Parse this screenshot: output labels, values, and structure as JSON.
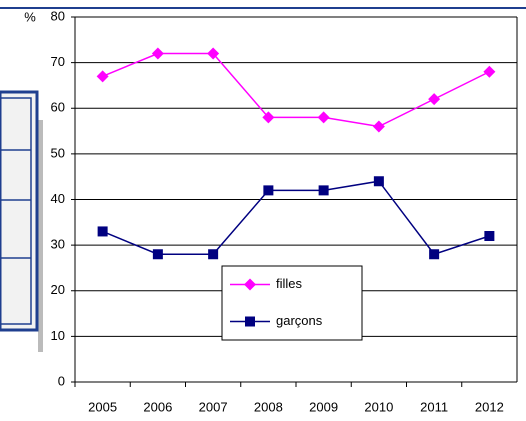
{
  "chart_data": {
    "type": "line",
    "y_label": "%",
    "categories": [
      "2005",
      "2006",
      "2007",
      "2008",
      "2009",
      "2010",
      "2011",
      "2012"
    ],
    "series": [
      {
        "name": "filles",
        "color": "#ff00ff",
        "marker": "diamond",
        "values": [
          67,
          72,
          72,
          58,
          58,
          56,
          62,
          68
        ]
      },
      {
        "name": "garçons",
        "color": "#000080",
        "marker": "square",
        "values": [
          33,
          28,
          28,
          42,
          42,
          44,
          28,
          32
        ]
      }
    ],
    "ylim": [
      0,
      80
    ],
    "yticks": [
      0,
      10,
      20,
      30,
      40,
      50,
      60,
      70,
      80
    ],
    "grid": true
  }
}
